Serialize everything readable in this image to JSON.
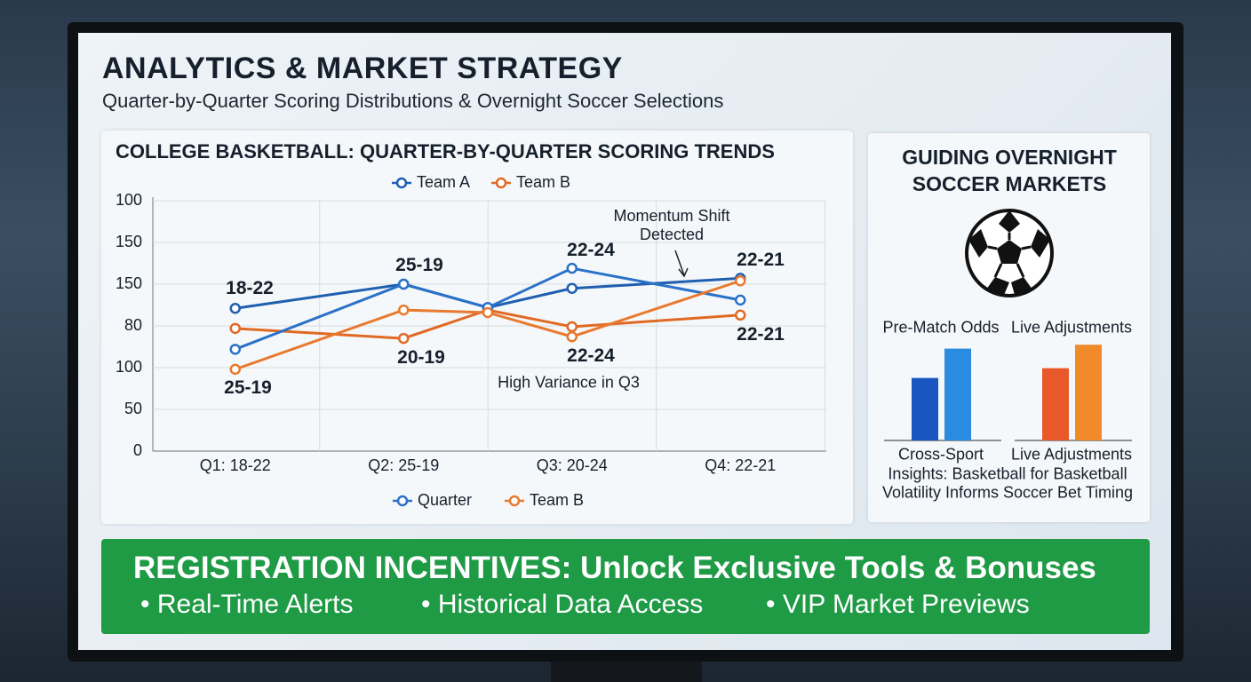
{
  "header": {
    "title": "ANALYTICS & MARKET STRATEGY",
    "subtitle": "Quarter-by-Quarter Scoring Distributions & Overnight Soccer Selections"
  },
  "chart_data": [
    {
      "type": "line",
      "title": "COLLEGE BASKETBALL: QUARTER-BY-QUARTER SCORING TRENDS",
      "x": [
        1,
        2,
        2.5,
        3,
        4
      ],
      "xlim": [
        0.5,
        4.5
      ],
      "xticks": [
        {
          "value": 1,
          "label": "Q1: 18-22"
        },
        {
          "value": 2,
          "label": "Q2: 25-19"
        },
        {
          "value": 3,
          "label": "Q3: 20-24"
        },
        {
          "value": 4,
          "label": "Q4: 22-21"
        }
      ],
      "ylim": [
        0,
        300
      ],
      "yticks": [
        0,
        50,
        100,
        {
          "value": 150,
          "label": "80"
        },
        {
          "value": 200,
          "label": "150"
        },
        {
          "value": 250,
          "label": "150"
        },
        {
          "value": 300,
          "label": "100"
        }
      ],
      "grid": true,
      "series": [
        {
          "name": "Team A",
          "color": "#1f5fb0",
          "values": [
            171,
            200,
            172,
            195,
            207
          ]
        },
        {
          "name": "Team B",
          "color": "#e06a24",
          "values": [
            147,
            135,
            169,
            149,
            163
          ]
        },
        {
          "name": "Quarter",
          "color": "#2a72c8",
          "values": [
            122,
            200,
            172,
            219,
            181
          ]
        },
        {
          "name": "Team B",
          "color": "#e8792e",
          "values": [
            98,
            169,
            166,
            137,
            204
          ]
        }
      ],
      "annotations": [
        "18-22",
        "25-19",
        "22-24",
        "22-21",
        "25-19",
        "20-19",
        "22-24",
        "22-21",
        "Momentum Shift Detected",
        "High Variance in Q3"
      ]
    },
    {
      "type": "bar",
      "title": "GUIDING OVERNIGHT SOCCER MARKETS",
      "ylim": [
        0,
        100
      ],
      "groups": [
        {
          "label": "Pre-Match Odds",
          "footer": "Cross-Sport",
          "values": [
            64,
            94
          ],
          "colors": [
            "#1a56c0",
            "#2a8ce0"
          ]
        },
        {
          "label": "Live Adjustments",
          "footer": "Live Adjustments",
          "values": [
            74,
            98
          ],
          "colors": [
            "#e8582a",
            "#f08a2a"
          ]
        }
      ],
      "caption": [
        "Insights: Basketball for Basketball",
        "Volatility Informs Soccer Bet Timing"
      ]
    }
  ],
  "banner": {
    "title": "REGISTRATION INCENTIVES: Unlock Exclusive Tools & Bonuses",
    "items": [
      "Real-Time Alerts",
      "Historical Data Access",
      "VIP Market Previews"
    ]
  }
}
